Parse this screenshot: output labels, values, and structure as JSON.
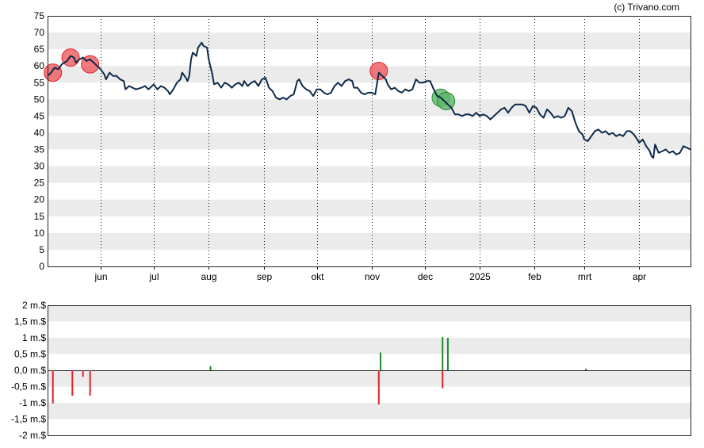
{
  "credit": "(c) Trivano.com",
  "colors": {
    "line": "#0d2a4a",
    "band": "#ebebeb",
    "sell": "#e0202a",
    "buy": "#1e8a2e",
    "sell_marker": "#ee5a5f",
    "buy_marker": "#5fb56a"
  },
  "chart_data": [
    {
      "type": "line",
      "title": "",
      "xlabel": "",
      "ylabel": "",
      "ylim": [
        0,
        75
      ],
      "yticks": [
        "0",
        "5",
        "10",
        "15",
        "20",
        "25",
        "30",
        "35",
        "40",
        "45",
        "50",
        "55",
        "60",
        "65",
        "70",
        "75"
      ],
      "x_start": "2024-05-02",
      "x_end": "2025-04-30",
      "month_ticks": [
        {
          "label": "jun",
          "date": "2024-06-01"
        },
        {
          "label": "jul",
          "date": "2024-07-01"
        },
        {
          "label": "aug",
          "date": "2024-08-01"
        },
        {
          "label": "sep",
          "date": "2024-09-01"
        },
        {
          "label": "okt",
          "date": "2024-10-01"
        },
        {
          "label": "nov",
          "date": "2024-11-01"
        },
        {
          "label": "dec",
          "date": "2024-12-01"
        },
        {
          "label": "2025",
          "date": "2025-01-01"
        },
        {
          "label": "feb",
          "date": "2025-02-01"
        },
        {
          "label": "mrt",
          "date": "2025-03-01"
        },
        {
          "label": "apr",
          "date": "2025-04-01"
        }
      ],
      "grid": "alternating horizontal bands, dotted vertical month lines",
      "series": [
        {
          "points": [
            [
              "2024-05-02",
              57.0
            ],
            [
              "2024-05-04",
              58.0
            ],
            [
              "2024-05-06",
              59.5
            ],
            [
              "2024-05-08",
              59.0
            ],
            [
              "2024-05-10",
              60.5
            ],
            [
              "2024-05-13",
              61.5
            ],
            [
              "2024-05-15",
              63.0
            ],
            [
              "2024-05-17",
              62.5
            ],
            [
              "2024-05-18",
              61.0
            ],
            [
              "2024-05-20",
              62.0
            ],
            [
              "2024-05-22",
              62.5
            ],
            [
              "2024-05-24",
              61.5
            ],
            [
              "2024-05-26",
              62.0
            ],
            [
              "2024-05-28",
              61.0
            ],
            [
              "2024-05-30",
              60.0
            ],
            [
              "2024-06-01",
              59.0
            ],
            [
              "2024-06-03",
              57.5
            ],
            [
              "2024-06-04",
              56.0
            ],
            [
              "2024-06-06",
              58.0
            ],
            [
              "2024-06-08",
              57.0
            ],
            [
              "2024-06-10",
              57.0
            ],
            [
              "2024-06-12",
              56.0
            ],
            [
              "2024-06-14",
              55.5
            ],
            [
              "2024-06-15",
              53.0
            ],
            [
              "2024-06-17",
              54.0
            ],
            [
              "2024-06-19",
              53.5
            ],
            [
              "2024-06-21",
              53.0
            ],
            [
              "2024-06-24",
              53.5
            ],
            [
              "2024-06-26",
              54.0
            ],
            [
              "2024-06-28",
              53.0
            ],
            [
              "2024-07-01",
              54.5
            ],
            [
              "2024-07-03",
              53.0
            ],
            [
              "2024-07-05",
              54.0
            ],
            [
              "2024-07-07",
              53.5
            ],
            [
              "2024-07-09",
              52.5
            ],
            [
              "2024-07-10",
              51.5
            ],
            [
              "2024-07-12",
              53.0
            ],
            [
              "2024-07-14",
              55.0
            ],
            [
              "2024-07-16",
              56.0
            ],
            [
              "2024-07-17",
              58.0
            ],
            [
              "2024-07-19",
              56.5
            ],
            [
              "2024-07-20",
              55.5
            ],
            [
              "2024-07-21",
              57.0
            ],
            [
              "2024-07-22",
              62.0
            ],
            [
              "2024-07-23",
              64.0
            ],
            [
              "2024-07-25",
              63.0
            ],
            [
              "2024-07-26",
              65.5
            ],
            [
              "2024-07-28",
              67.0
            ],
            [
              "2024-07-29",
              66.0
            ],
            [
              "2024-07-31",
              65.5
            ],
            [
              "2024-08-01",
              62.0
            ],
            [
              "2024-08-03",
              57.5
            ],
            [
              "2024-08-04",
              54.5
            ],
            [
              "2024-08-06",
              55.0
            ],
            [
              "2024-08-08",
              53.5
            ],
            [
              "2024-08-10",
              55.0
            ],
            [
              "2024-08-12",
              54.5
            ],
            [
              "2024-08-14",
              53.5
            ],
            [
              "2024-08-16",
              54.5
            ],
            [
              "2024-08-18",
              55.0
            ],
            [
              "2024-08-20",
              54.0
            ],
            [
              "2024-08-21",
              55.5
            ],
            [
              "2024-08-23",
              54.0
            ],
            [
              "2024-08-25",
              55.0
            ],
            [
              "2024-08-27",
              55.5
            ],
            [
              "2024-08-29",
              54.0
            ],
            [
              "2024-08-31",
              56.0
            ],
            [
              "2024-09-02",
              56.5
            ],
            [
              "2024-09-04",
              53.5
            ],
            [
              "2024-09-06",
              52.5
            ],
            [
              "2024-09-08",
              50.5
            ],
            [
              "2024-09-10",
              50.0
            ],
            [
              "2024-09-12",
              50.5
            ],
            [
              "2024-09-14",
              50.0
            ],
            [
              "2024-09-16",
              51.0
            ],
            [
              "2024-09-18",
              51.5
            ],
            [
              "2024-09-20",
              55.5
            ],
            [
              "2024-09-21",
              56.0
            ],
            [
              "2024-09-23",
              54.0
            ],
            [
              "2024-09-25",
              53.0
            ],
            [
              "2024-09-27",
              52.5
            ],
            [
              "2024-09-29",
              51.0
            ],
            [
              "2024-10-01",
              53.0
            ],
            [
              "2024-10-03",
              53.0
            ],
            [
              "2024-10-05",
              52.0
            ],
            [
              "2024-10-07",
              51.5
            ],
            [
              "2024-10-09",
              52.0
            ],
            [
              "2024-10-11",
              54.0
            ],
            [
              "2024-10-13",
              55.0
            ],
            [
              "2024-10-15",
              54.0
            ],
            [
              "2024-10-17",
              55.5
            ],
            [
              "2024-10-19",
              56.0
            ],
            [
              "2024-10-21",
              55.5
            ],
            [
              "2024-10-22",
              53.5
            ],
            [
              "2024-10-24",
              53.5
            ],
            [
              "2024-10-26",
              52.0
            ],
            [
              "2024-10-28",
              51.5
            ],
            [
              "2024-10-30",
              52.0
            ],
            [
              "2024-11-01",
              52.0
            ],
            [
              "2024-11-03",
              51.5
            ],
            [
              "2024-11-05",
              58.0
            ],
            [
              "2024-11-07",
              57.0
            ],
            [
              "2024-11-09",
              56.0
            ],
            [
              "2024-11-10",
              54.5
            ],
            [
              "2024-11-12",
              53.0
            ],
            [
              "2024-11-14",
              53.5
            ],
            [
              "2024-11-16",
              52.5
            ],
            [
              "2024-11-18",
              52.0
            ],
            [
              "2024-11-20",
              53.0
            ],
            [
              "2024-11-22",
              52.5
            ],
            [
              "2024-11-24",
              53.0
            ],
            [
              "2024-11-26",
              56.0
            ],
            [
              "2024-11-28",
              55.0
            ],
            [
              "2024-11-30",
              55.0
            ],
            [
              "2024-12-02",
              55.5
            ],
            [
              "2024-12-04",
              55.5
            ],
            [
              "2024-12-06",
              53.0
            ],
            [
              "2024-12-08",
              51.0
            ],
            [
              "2024-12-10",
              50.5
            ],
            [
              "2024-12-12",
              49.5
            ],
            [
              "2024-12-14",
              48.5
            ],
            [
              "2024-12-16",
              47.5
            ],
            [
              "2024-12-18",
              45.5
            ],
            [
              "2024-12-20",
              45.5
            ],
            [
              "2024-12-22",
              45.0
            ],
            [
              "2024-12-24",
              45.5
            ],
            [
              "2024-12-26",
              45.5
            ],
            [
              "2024-12-28",
              45.0
            ],
            [
              "2024-12-30",
              46.0
            ],
            [
              "2025-01-01",
              45.0
            ],
            [
              "2025-01-03",
              45.5
            ],
            [
              "2025-01-05",
              45.0
            ],
            [
              "2025-01-07",
              44.0
            ],
            [
              "2025-01-09",
              45.0
            ],
            [
              "2025-01-11",
              46.0
            ],
            [
              "2025-01-13",
              47.0
            ],
            [
              "2025-01-15",
              47.5
            ],
            [
              "2025-01-17",
              46.0
            ],
            [
              "2025-01-19",
              47.5
            ],
            [
              "2025-01-21",
              48.5
            ],
            [
              "2025-01-23",
              48.5
            ],
            [
              "2025-01-25",
              48.5
            ],
            [
              "2025-01-27",
              48.0
            ],
            [
              "2025-01-29",
              46.0
            ],
            [
              "2025-01-31",
              48.0
            ],
            [
              "2025-02-02",
              47.5
            ],
            [
              "2025-02-04",
              45.5
            ],
            [
              "2025-02-06",
              44.5
            ],
            [
              "2025-02-08",
              47.0
            ],
            [
              "2025-02-10",
              46.0
            ],
            [
              "2025-02-12",
              44.5
            ],
            [
              "2025-02-14",
              45.0
            ],
            [
              "2025-02-16",
              44.5
            ],
            [
              "2025-02-18",
              45.0
            ],
            [
              "2025-02-20",
              47.5
            ],
            [
              "2025-02-22",
              46.5
            ],
            [
              "2025-02-24",
              43.0
            ],
            [
              "2025-02-26",
              40.5
            ],
            [
              "2025-02-28",
              39.5
            ],
            [
              "2025-03-01",
              38.0
            ],
            [
              "2025-03-03",
              37.5
            ],
            [
              "2025-03-05",
              39.0
            ],
            [
              "2025-03-07",
              40.5
            ],
            [
              "2025-03-09",
              41.0
            ],
            [
              "2025-03-11",
              40.0
            ],
            [
              "2025-03-13",
              40.5
            ],
            [
              "2025-03-15",
              39.5
            ],
            [
              "2025-03-17",
              40.0
            ],
            [
              "2025-03-19",
              39.0
            ],
            [
              "2025-03-21",
              39.5
            ],
            [
              "2025-03-23",
              39.0
            ],
            [
              "2025-03-25",
              40.5
            ],
            [
              "2025-03-27",
              40.5
            ],
            [
              "2025-03-29",
              39.5
            ],
            [
              "2025-03-31",
              38.0
            ],
            [
              "2025-04-01",
              37.0
            ],
            [
              "2025-04-03",
              38.0
            ],
            [
              "2025-04-05",
              36.0
            ],
            [
              "2025-04-07",
              34.5
            ],
            [
              "2025-04-08",
              33.0
            ],
            [
              "2025-04-09",
              32.5
            ],
            [
              "2025-04-10",
              36.5
            ],
            [
              "2025-04-12",
              34.0
            ],
            [
              "2025-04-14",
              34.5
            ],
            [
              "2025-04-16",
              35.0
            ],
            [
              "2025-04-18",
              34.0
            ],
            [
              "2025-04-20",
              34.5
            ],
            [
              "2025-04-22",
              33.5
            ],
            [
              "2025-04-24",
              34.0
            ],
            [
              "2025-04-26",
              36.0
            ],
            [
              "2025-04-28",
              35.5
            ],
            [
              "2025-04-30",
              35.0
            ]
          ]
        }
      ],
      "markers": [
        {
          "date": "2024-05-05",
          "value": 58.0,
          "kind": "sell"
        },
        {
          "date": "2024-05-15",
          "value": 62.5,
          "kind": "sell"
        },
        {
          "date": "2024-05-26",
          "value": 60.5,
          "kind": "sell"
        },
        {
          "date": "2024-11-05",
          "value": 58.5,
          "kind": "sell"
        },
        {
          "date": "2024-12-10",
          "value": 50.5,
          "kind": "buy"
        },
        {
          "date": "2024-12-13",
          "value": 49.5,
          "kind": "buy"
        }
      ]
    },
    {
      "type": "bar",
      "title": "",
      "xlabel": "",
      "ylabel": "",
      "ylim": [
        -2,
        2
      ],
      "yticks": [
        "-2 m.$",
        "-1,5 m.$",
        "-1 m.$",
        "-0,5 m.$",
        "0,0 m.$",
        "0,5 m.$",
        "1 m.$",
        "1,5 m.$",
        "2 m.$"
      ],
      "bars": [
        {
          "date": "2024-05-05",
          "value": -1.02,
          "kind": "sell"
        },
        {
          "date": "2024-05-16",
          "value": -0.78,
          "kind": "sell"
        },
        {
          "date": "2024-05-22",
          "value": -0.2,
          "kind": "sell"
        },
        {
          "date": "2024-05-26",
          "value": -0.78,
          "kind": "sell"
        },
        {
          "date": "2024-08-02",
          "value": 0.13,
          "kind": "buy"
        },
        {
          "date": "2024-11-05",
          "value": -1.05,
          "kind": "sell"
        },
        {
          "date": "2024-11-06",
          "value": 0.55,
          "kind": "buy"
        },
        {
          "date": "2024-12-11",
          "value": 1.02,
          "kind": "buy"
        },
        {
          "date": "2024-12-11",
          "value": -0.55,
          "kind": "sell"
        },
        {
          "date": "2024-12-14",
          "value": 1.0,
          "kind": "buy"
        },
        {
          "date": "2025-03-02",
          "value": 0.05,
          "kind": "buy"
        }
      ]
    }
  ]
}
